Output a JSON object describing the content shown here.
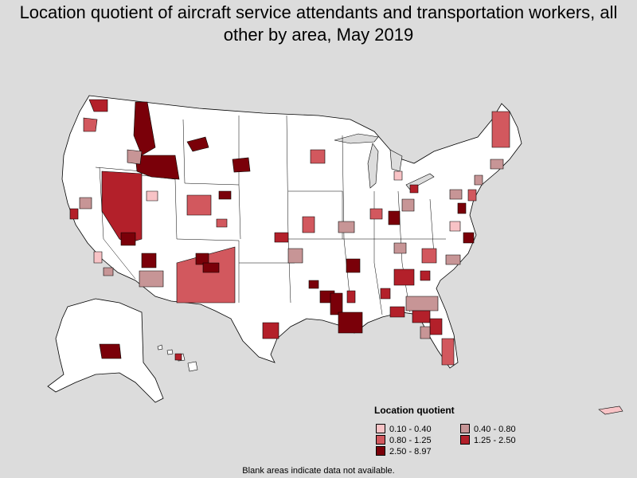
{
  "title": "Location quotient of aircraft service attendants and transportation workers, all other by area, May 2019",
  "legend": {
    "title": "Location quotient",
    "items": [
      {
        "label": "0.10 - 0.40",
        "color": "#f8c3c6"
      },
      {
        "label": "0.40 - 0.80",
        "color": "#c79596"
      },
      {
        "label": "0.80 - 1.25",
        "color": "#d2585e"
      },
      {
        "label": "1.25 - 2.50",
        "color": "#b3202a"
      },
      {
        "label": "2.50 - 8.97",
        "color": "#7a0009"
      }
    ]
  },
  "footnote": "Blank areas indicate data not available.",
  "colors": {
    "background": "#dcdcdc",
    "land": "#ffffff",
    "border": "#000000"
  }
}
